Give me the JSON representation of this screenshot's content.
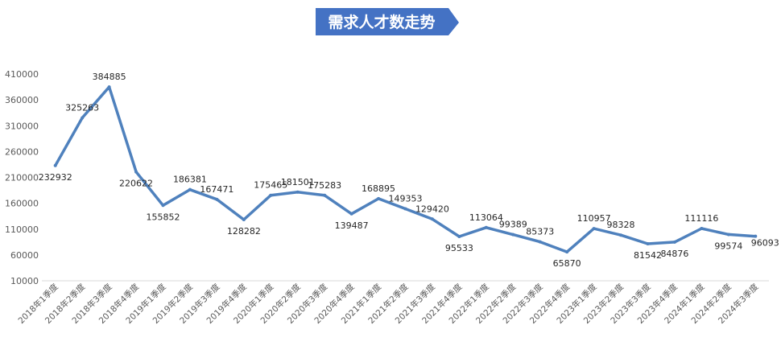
{
  "chart_data": {
    "type": "line",
    "title": "需求人才数走势",
    "categories": [
      "2018年1季度",
      "2018年2季度",
      "2018年3季度",
      "2018年4季度",
      "2019年1季度",
      "2019年2季度",
      "2019年3季度",
      "2019年4季度",
      "2020年1季度",
      "2020年2季度",
      "2020年3季度",
      "2020年4季度",
      "2021年1季度",
      "2021年2季度",
      "2021年3季度",
      "2021年4季度",
      "2022年1季度",
      "2022年2季度",
      "2022年3季度",
      "2022年4季度",
      "2023年1季度",
      "2023年2季度",
      "2023年3季度",
      "2023年4季度",
      "2024年1季度",
      "2024年2季度",
      "2024年3季度"
    ],
    "values": [
      232932,
      325263,
      384885,
      220622,
      155852,
      186381,
      167471,
      128282,
      175465,
      181501,
      175283,
      139487,
      168895,
      149353,
      129420,
      95533,
      113064,
      99389,
      85373,
      65870,
      110957,
      98328,
      81542,
      84876,
      111116,
      99574,
      96093
    ],
    "data_labels": [
      "232932",
      "325263",
      "384885",
      "220622",
      "155852",
      "186381",
      "167471",
      "128282",
      "175465",
      "181501",
      "175283",
      "139487",
      "168895",
      "149353",
      "129420",
      "95533",
      "113064",
      "99389",
      "85373",
      "65870",
      "110957",
      "98328",
      "81542",
      "84876",
      "111116",
      "99574",
      "96093"
    ],
    "yticks": [
      10000,
      60000,
      110000,
      160000,
      210000,
      260000,
      310000,
      360000,
      410000
    ],
    "ylim": [
      10000,
      410000
    ],
    "grid": false,
    "legend": "none",
    "colors": {
      "line": "#4f81bd",
      "title_bg": "#4472c4",
      "title_text": "#ffffff",
      "tick_text": "#595959",
      "label_text": "#262626",
      "axis": "#d9d9d9"
    }
  }
}
